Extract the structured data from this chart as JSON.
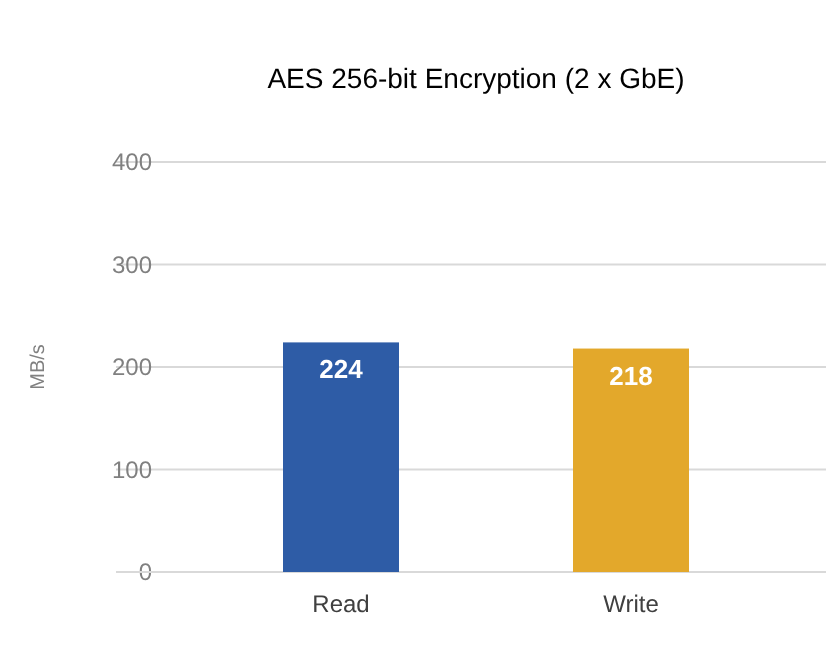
{
  "chart_data": {
    "type": "bar",
    "title": "AES 256-bit Encryption (2 x GbE)",
    "ylabel": "MB/s",
    "categories": [
      "Read",
      "Write"
    ],
    "values": [
      224,
      218
    ],
    "colors": [
      "#2e5ca6",
      "#e3a82b"
    ],
    "ylim": [
      0,
      400
    ],
    "yticks": [
      0,
      100,
      200,
      300,
      400
    ],
    "grid": "y",
    "data_labels": true
  }
}
